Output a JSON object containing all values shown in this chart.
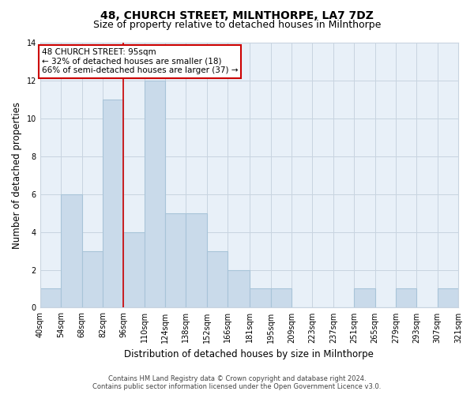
{
  "title": "48, CHURCH STREET, MILNTHORPE, LA7 7DZ",
  "subtitle": "Size of property relative to detached houses in Milnthorpe",
  "xlabel": "Distribution of detached houses by size in Milnthorpe",
  "ylabel": "Number of detached properties",
  "bin_edges": [
    40,
    54,
    68,
    82,
    96,
    110,
    124,
    138,
    152,
    166,
    181,
    195,
    209,
    223,
    237,
    251,
    265,
    279,
    293,
    307,
    321
  ],
  "bin_labels": [
    "40sqm",
    "54sqm",
    "68sqm",
    "82sqm",
    "96sqm",
    "110sqm",
    "124sqm",
    "138sqm",
    "152sqm",
    "166sqm",
    "181sqm",
    "195sqm",
    "209sqm",
    "223sqm",
    "237sqm",
    "251sqm",
    "265sqm",
    "279sqm",
    "293sqm",
    "307sqm",
    "321sqm"
  ],
  "counts": [
    1,
    6,
    3,
    11,
    4,
    12,
    5,
    5,
    3,
    2,
    1,
    1,
    0,
    0,
    0,
    1,
    0,
    1,
    0,
    1
  ],
  "bar_color": "#c9daea",
  "bar_edge_color": "#a8c4d8",
  "vertical_line_x": 96,
  "annotation_line1": "48 CHURCH STREET: 95sqm",
  "annotation_line2": "← 32% of detached houses are smaller (18)",
  "annotation_line3": "66% of semi-detached houses are larger (37) →",
  "annotation_box_color": "#ffffff",
  "annotation_box_edge_color": "#cc0000",
  "vline_color": "#cc0000",
  "ylim": [
    0,
    14
  ],
  "yticks": [
    0,
    2,
    4,
    6,
    8,
    10,
    12,
    14
  ],
  "footer_line1": "Contains HM Land Registry data © Crown copyright and database right 2024.",
  "footer_line2": "Contains public sector information licensed under the Open Government Licence v3.0.",
  "bg_color": "#ffffff",
  "plot_bg_color": "#e8f0f8",
  "grid_color": "#c8d4e0",
  "title_fontsize": 10,
  "subtitle_fontsize": 9,
  "axis_label_fontsize": 8.5,
  "tick_fontsize": 7,
  "annotation_fontsize": 7.5,
  "footer_fontsize": 6
}
